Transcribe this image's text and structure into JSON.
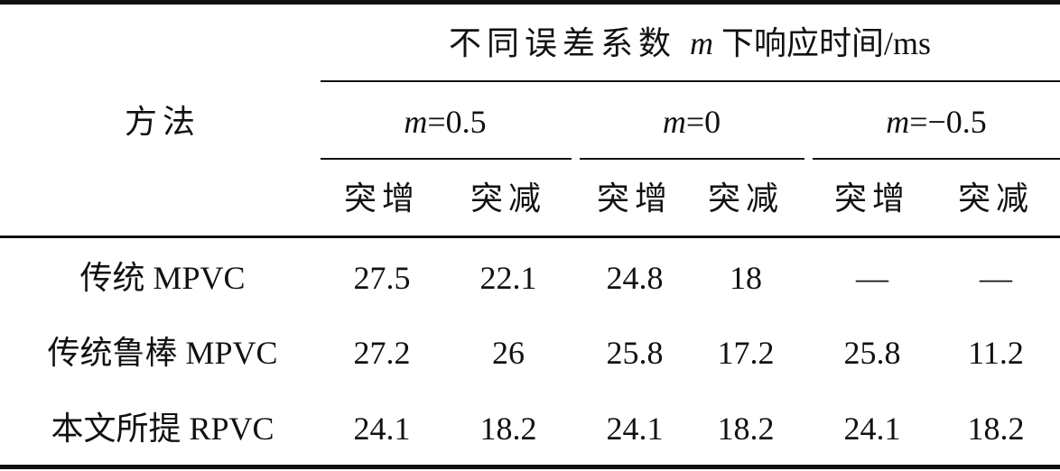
{
  "table": {
    "method_header": "方法",
    "group_header_prefix": "不同误差系数 ",
    "group_header_var": "m",
    "group_header_suffix": " 下响应时间/ms",
    "m_groups": [
      {
        "var": "m",
        "value": "=0.5"
      },
      {
        "var": "m",
        "value": "=0"
      },
      {
        "var": "m",
        "value": "=−0.5"
      }
    ],
    "sub_headers": [
      "突增",
      "突减",
      "突增",
      "突减",
      "突增",
      "突减"
    ],
    "rows": [
      {
        "method": "传统 MPVC",
        "values": [
          "27.5",
          "22.1",
          "24.8",
          "18",
          "—",
          "—"
        ]
      },
      {
        "method": "传统鲁棒 MPVC",
        "values": [
          "27.2",
          "26",
          "25.8",
          "17.2",
          "25.8",
          "11.2"
        ]
      },
      {
        "method": "本文所提 RPVC",
        "values": [
          "24.1",
          "18.2",
          "24.1",
          "18.2",
          "24.1",
          "18.2"
        ]
      }
    ]
  }
}
